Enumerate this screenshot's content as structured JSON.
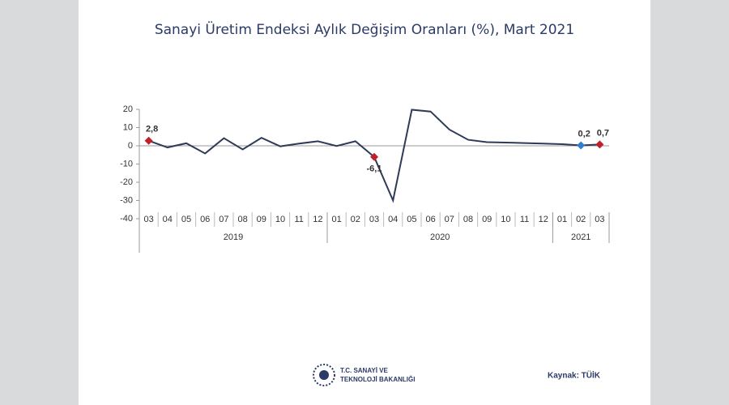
{
  "chart_data": {
    "type": "line",
    "title": "Sanayi Üretim Endeksi Aylık Değişim Oranları (%), Mart 2021",
    "categories": [
      "03",
      "04",
      "05",
      "06",
      "07",
      "08",
      "09",
      "10",
      "11",
      "12",
      "01",
      "02",
      "03",
      "04",
      "05",
      "06",
      "07",
      "08",
      "09",
      "10",
      "11",
      "12",
      "01",
      "02",
      "03"
    ],
    "groups": [
      {
        "label": "2019",
        "span": 10
      },
      {
        "label": "2020",
        "span": 12
      },
      {
        "label": "2021",
        "span": 3
      }
    ],
    "values": [
      2.8,
      -0.9,
      1.4,
      -4.2,
      4.2,
      -2.0,
      4.4,
      -0.3,
      1.2,
      2.5,
      -0.1,
      2.5,
      -6.1,
      -30.0,
      19.8,
      18.8,
      8.9,
      3.3,
      2.0,
      1.8,
      1.5,
      1.2,
      0.9,
      0.2,
      0.7
    ],
    "value_labels": [
      "2,8",
      null,
      null,
      null,
      null,
      null,
      null,
      null,
      null,
      null,
      null,
      null,
      "-6,1",
      null,
      null,
      null,
      null,
      null,
      null,
      null,
      null,
      null,
      null,
      "0,2",
      "0,7"
    ],
    "marker_colors": [
      "#c0202a",
      null,
      null,
      null,
      null,
      null,
      null,
      null,
      null,
      null,
      null,
      null,
      "#c0202a",
      null,
      null,
      null,
      null,
      null,
      null,
      null,
      null,
      null,
      null,
      "#2f7fd1",
      "#c0202a"
    ],
    "color": "#2e3a57",
    "ylim": [
      -40,
      20
    ],
    "yticks": [
      -40,
      -30,
      -20,
      -10,
      0,
      10,
      20
    ]
  },
  "footer": {
    "logo_line1": "T.C. SANAYİ VE",
    "logo_line2": "TEKNOLOJİ BAKANLIĞI",
    "source": "Kaynak: TÜİK"
  }
}
